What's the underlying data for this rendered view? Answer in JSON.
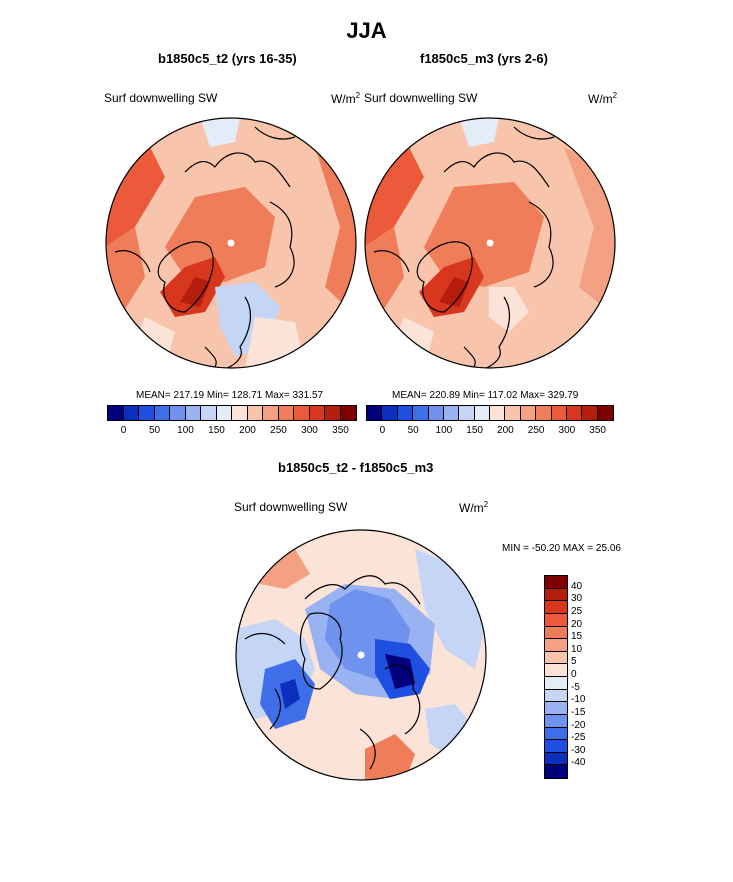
{
  "figure_title": "JJA",
  "panels": [
    {
      "subtitle": "b1850c5_t2 (yrs 16-35)",
      "variable": "Surf downwelling SW",
      "units_base": "W/m",
      "units_exp": "2",
      "stats": "MEAN= 217.19  Min= 128.71  Max= 331.57"
    },
    {
      "subtitle": "f1850c5_m3 (yrs 2-6)",
      "variable": "Surf downwelling SW",
      "units_base": "W/m",
      "units_exp": "2",
      "stats": "MEAN= 220.89  Min= 117.02  Max= 329.79"
    }
  ],
  "colorbar_abs": {
    "colors": [
      "#00007f",
      "#0b2fbf",
      "#1e4fe0",
      "#3f6fe8",
      "#6f92ee",
      "#99b3f2",
      "#c4d5f5",
      "#e3ecf7",
      "#fbe3d8",
      "#f8c4ab",
      "#f3a182",
      "#ef7d5a",
      "#eb5b3b",
      "#d8361d",
      "#b51d0c",
      "#7e0000"
    ],
    "ticks": [
      "0",
      "50",
      "100",
      "150",
      "200",
      "250",
      "300",
      "350"
    ]
  },
  "diff_panel": {
    "subtitle": "b1850c5_t2 - f1850c5_m3",
    "variable": "Surf downwelling SW",
    "units_base": "W/m",
    "units_exp": "2",
    "stats": "MIN = -50.20 MAX =  25.06"
  },
  "colorbar_diff": {
    "colors": [
      "#7f0000",
      "#b51d0c",
      "#d8361d",
      "#eb5b3b",
      "#ef7d5a",
      "#f3a182",
      "#f8c4ab",
      "#fbe3d8",
      "#e3ecf7",
      "#c4d5f5",
      "#99b3f2",
      "#6f92ee",
      "#3f6fe8",
      "#1e4fe0",
      "#0b2fbf",
      "#00007f"
    ],
    "ticks": [
      "40",
      "30",
      "25",
      "20",
      "15",
      "10",
      "5",
      "0",
      "-5",
      "-10",
      "-15",
      "-20",
      "-25",
      "-30",
      "-40"
    ]
  },
  "icons": {
    "map": "polar-stereographic-map-icon",
    "pole": "north-pole-marker-icon"
  }
}
